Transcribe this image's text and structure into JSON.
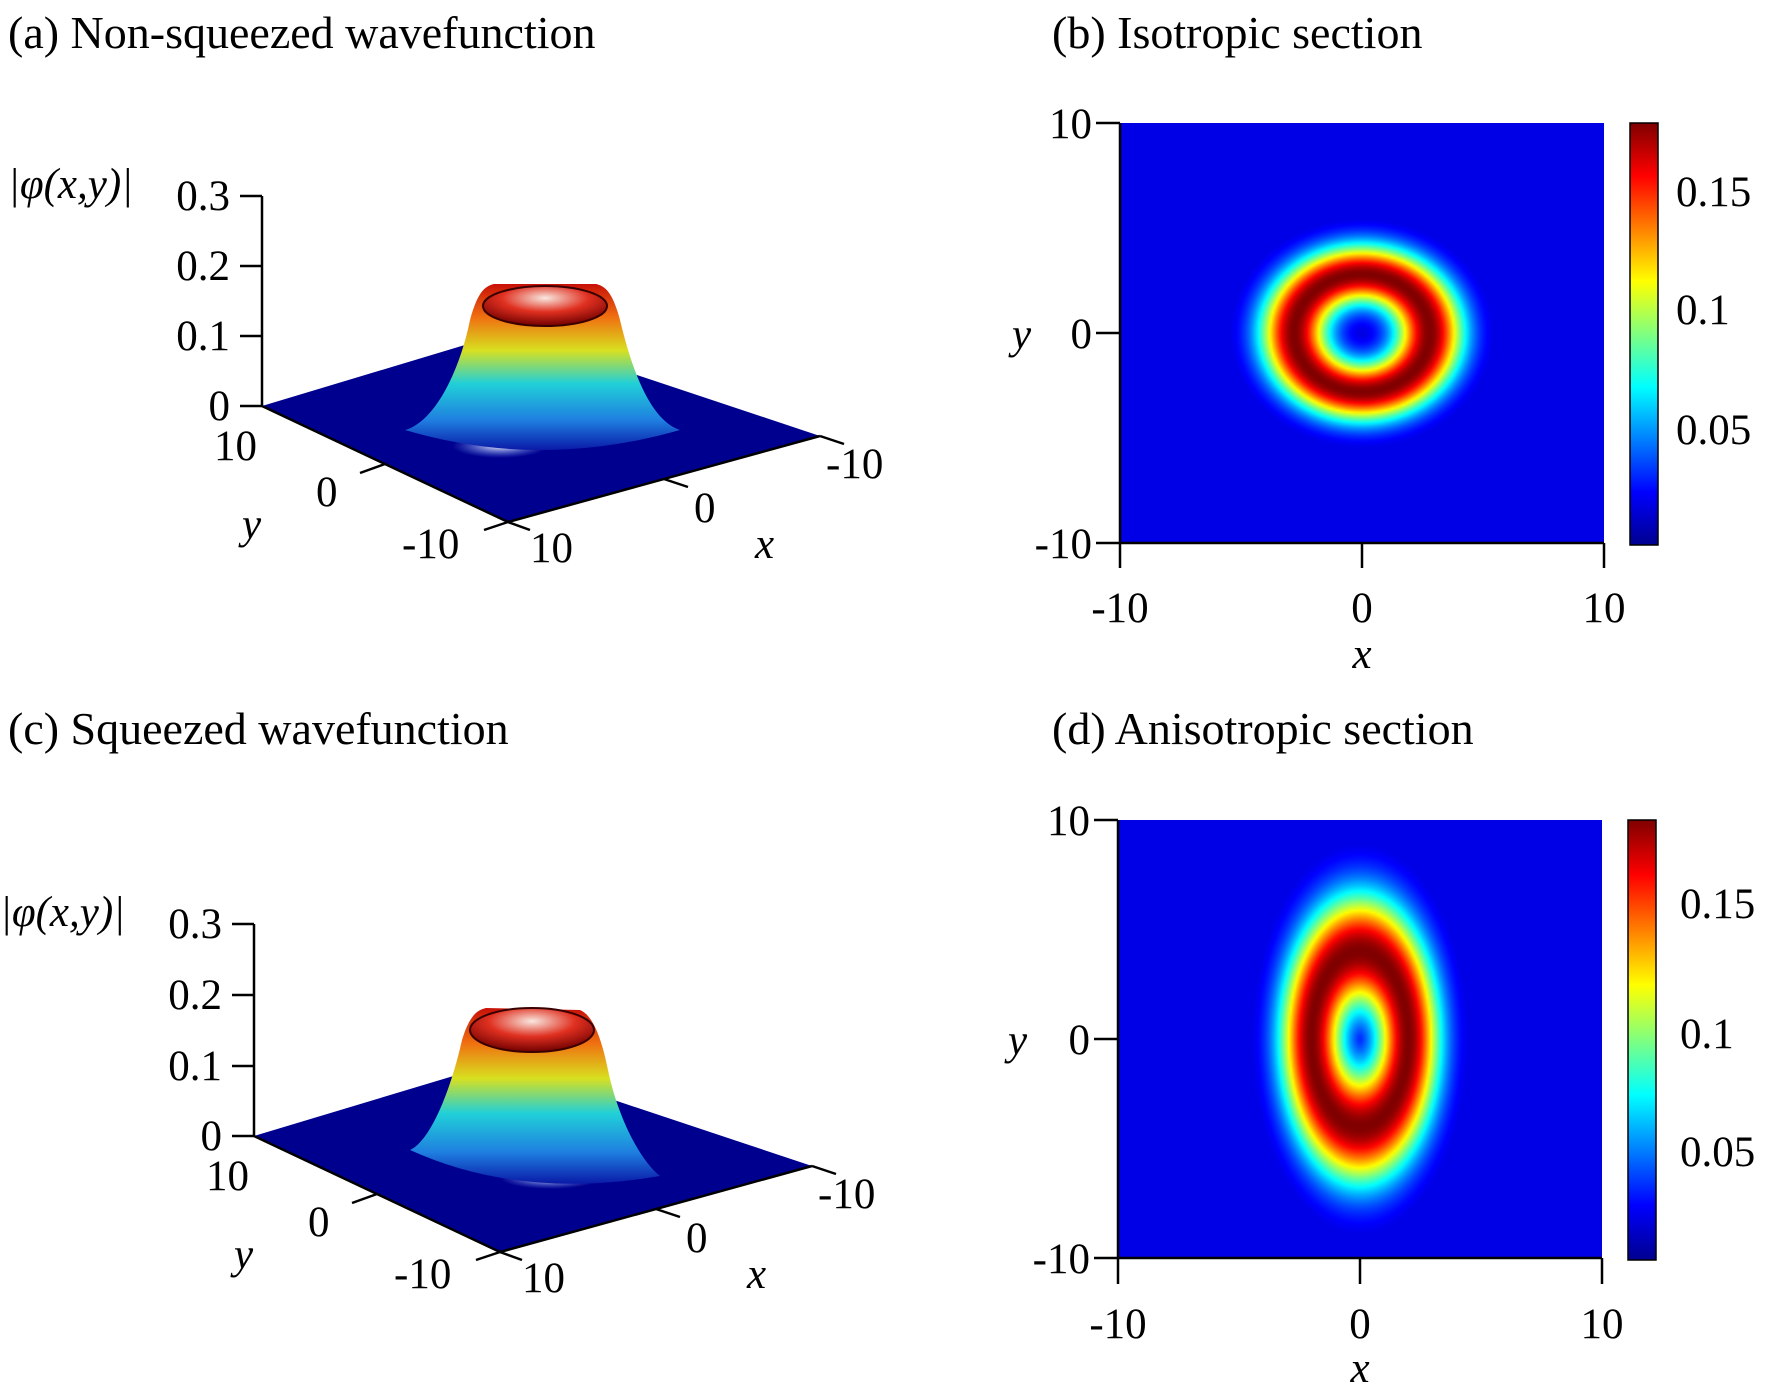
{
  "chart_data": [
    {
      "panel": "a",
      "type": "surface3d",
      "title": "(a) Non-squeezed wavefunction",
      "zlabel": "|φ(x,y)|",
      "xlabel": "x",
      "ylabel": "y",
      "zticks": [
        "0.3",
        "0.2",
        "0.1",
        "0"
      ],
      "xticks": [
        "10",
        "0",
        "-10"
      ],
      "yticks": [
        "10",
        "0",
        "-10"
      ],
      "xlim": [
        -10,
        10
      ],
      "ylim": [
        -10,
        10
      ],
      "zlim": [
        0,
        0.3
      ],
      "ring": {
        "peak": 0.18,
        "radius_x": 2.8,
        "radius_y": 2.8,
        "width": 1.4
      }
    },
    {
      "panel": "b",
      "type": "heatmap",
      "title": "(b) Isotropic section",
      "xlabel": "x",
      "ylabel": "y",
      "xticks": [
        "-10",
        "0",
        "10"
      ],
      "yticks": [
        "10",
        "0",
        "-10"
      ],
      "xlim": [
        -10,
        10
      ],
      "ylim": [
        -10,
        10
      ],
      "colorbar_ticks": [
        "0.15",
        "0.1",
        "0.05"
      ],
      "colorbar_range": [
        0.005,
        0.18
      ],
      "ring": {
        "peak": 0.18,
        "radius_x": 2.8,
        "radius_y": 2.8,
        "width": 1.4
      }
    },
    {
      "panel": "c",
      "type": "surface3d",
      "title": "(c) Squeezed wavefunction",
      "zlabel": "|φ(x,y)|",
      "xlabel": "x",
      "ylabel": "y",
      "zticks": [
        "0.3",
        "0.2",
        "0.1",
        "0"
      ],
      "xticks": [
        "10",
        "0",
        "-10"
      ],
      "yticks": [
        "10",
        "0",
        "-10"
      ],
      "xlim": [
        -10,
        10
      ],
      "ylim": [
        -10,
        10
      ],
      "zlim": [
        0,
        0.3
      ],
      "ring": {
        "peak": 0.18,
        "radius_x": 2.0,
        "radius_y": 4.0,
        "width": 1.3
      }
    },
    {
      "panel": "d",
      "type": "heatmap",
      "title": "(d) Anisotropic section",
      "xlabel": "x",
      "ylabel": "y",
      "xticks": [
        "-10",
        "0",
        "10"
      ],
      "yticks": [
        "10",
        "0",
        "-10"
      ],
      "xlim": [
        -10,
        10
      ],
      "ylim": [
        -10,
        10
      ],
      "colorbar_ticks": [
        "0.15",
        "0.1",
        "0.05"
      ],
      "colorbar_range": [
        0.005,
        0.185
      ],
      "ring": {
        "peak": 0.185,
        "radius_x": 2.0,
        "radius_y": 4.0,
        "width": 1.3
      }
    }
  ]
}
